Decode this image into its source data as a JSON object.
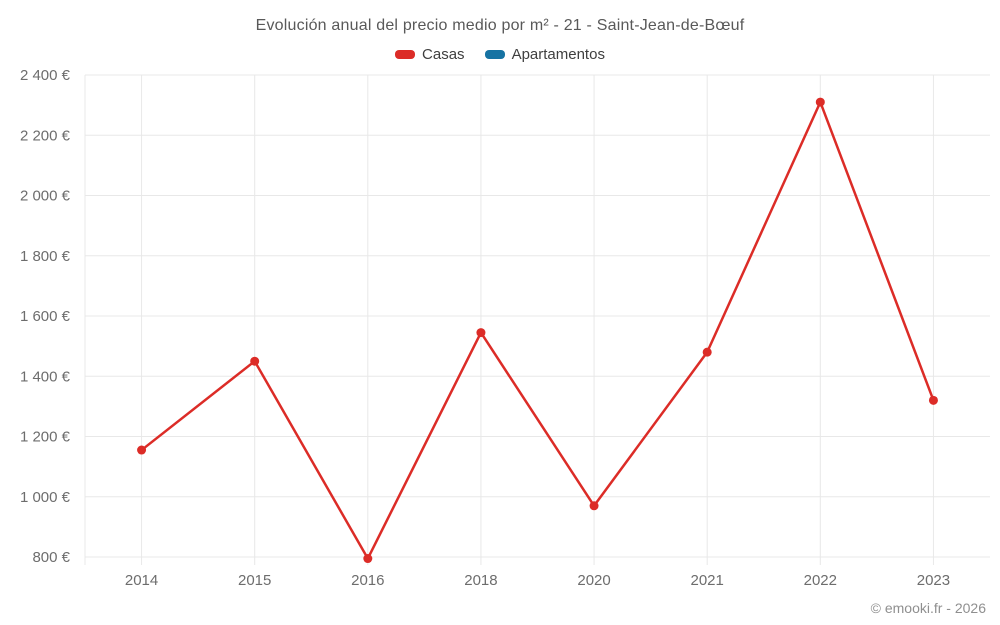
{
  "page": {
    "title": "Evolución anual del precio medio por m² - 21 - Saint-Jean-de-Bœuf",
    "footer": "© emooki.fr - 2026"
  },
  "legend": {
    "items": [
      {
        "label": "Casas",
        "color": "#dc2c27"
      },
      {
        "label": "Apartamentos",
        "color": "#1673a3"
      }
    ]
  },
  "chart_data": {
    "type": "line",
    "title": "Evolución anual del precio medio por m² - 21 - Saint-Jean-de-Bœuf",
    "categories": [
      "2014",
      "2015",
      "2016",
      "2018",
      "2020",
      "2021",
      "2022",
      "2023"
    ],
    "series": [
      {
        "name": "Casas",
        "color": "#dc2c27",
        "values": [
          1155,
          1450,
          795,
          1545,
          970,
          1480,
          2310,
          1320
        ]
      },
      {
        "name": "Apartamentos",
        "color": "#1673a3",
        "values": []
      }
    ],
    "xlabel": "",
    "ylabel": "",
    "ylim": [
      800,
      2400
    ],
    "y_ticks": [
      800,
      1000,
      1200,
      1400,
      1600,
      1800,
      2000,
      2200,
      2400
    ],
    "y_tick_labels": [
      "800 €",
      "1 000 €",
      "1 200 €",
      "1 400 €",
      "1 600 €",
      "1 800 €",
      "2 000 €",
      "2 200 €",
      "2 400 €"
    ],
    "grid": true,
    "legend_position": "top",
    "currency": "€"
  },
  "style": {
    "grid_color": "#e8e8e8",
    "axis_label_color": "#6d6d6d",
    "title_color": "#595959",
    "legend_text_color": "#3f3f3f",
    "footer_color": "#8f8f8f"
  }
}
